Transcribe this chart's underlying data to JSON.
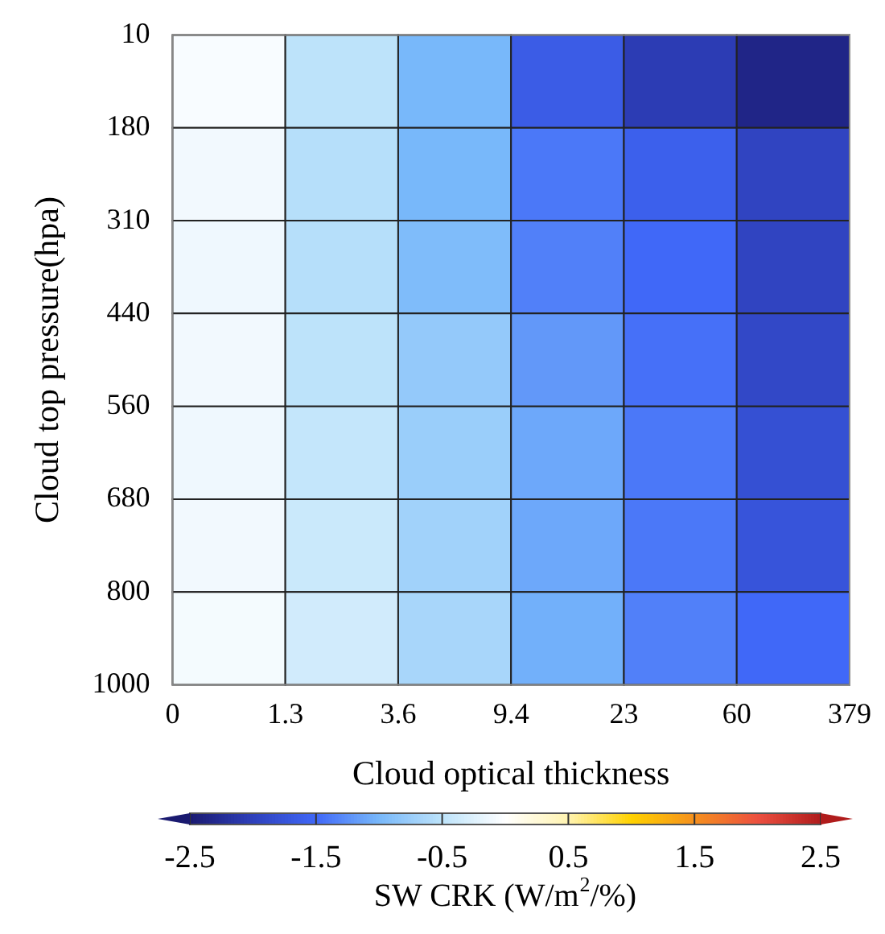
{
  "chart_data": {
    "type": "heatmap",
    "xlabel": "Cloud optical thickness",
    "ylabel": "Cloud top pressure(hpa)",
    "clabel": "SW CRK (W/m$^{2}$/%)",
    "categories": [
      null,
      null,
      null,
      null,
      null,
      null
    ],
    "y_categories": [
      null,
      null,
      null,
      null,
      null,
      null,
      null
    ],
    "annotations": [
      "0",
      "1.3",
      "3.6",
      "9.4",
      "23",
      "60",
      "379",
      "10",
      "180",
      "310",
      "440",
      "560",
      "680",
      "800",
      "1000"
    ],
    "cells": [
      [
        -0.05,
        -0.5,
        -1.0,
        -1.65,
        -2.05,
        -2.35
      ],
      [
        -0.1,
        -0.55,
        -1.0,
        -1.4,
        -1.6,
        -1.95
      ],
      [
        -0.12,
        -0.55,
        -0.95,
        -1.35,
        -1.5,
        -1.95
      ],
      [
        -0.1,
        -0.5,
        -0.8,
        -1.2,
        -1.45,
        -1.9
      ],
      [
        -0.12,
        -0.45,
        -0.75,
        -1.1,
        -1.4,
        -1.8
      ],
      [
        -0.1,
        -0.4,
        -0.7,
        -1.1,
        -1.4,
        -1.75
      ],
      [
        -0.08,
        -0.35,
        -0.65,
        -1.05,
        -1.35,
        -1.5
      ]
    ],
    "clim": [
      -2.5,
      2.5
    ],
    "cticks": [
      -2.5,
      -1.5,
      -0.5,
      0.5,
      1.5,
      2.5
    ]
  }
}
